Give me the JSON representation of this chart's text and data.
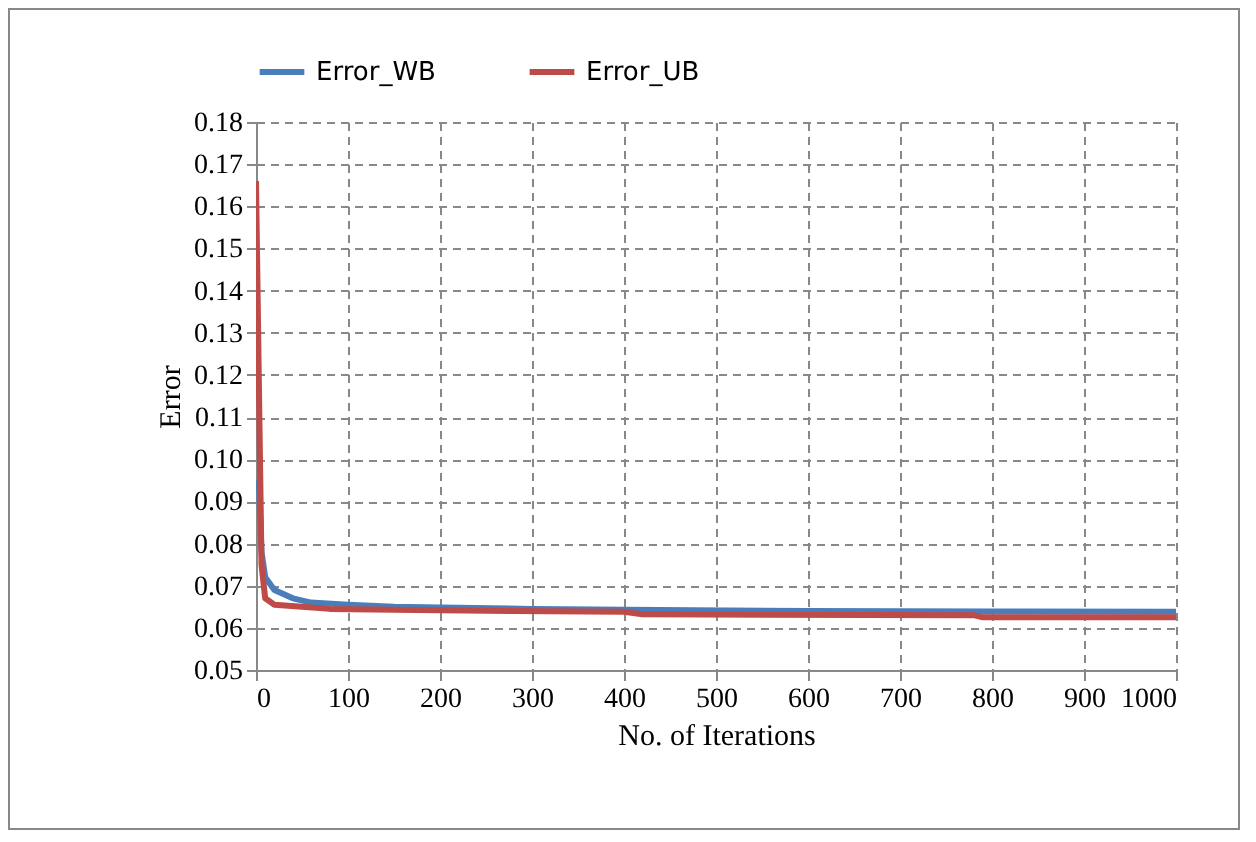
{
  "chart_data": {
    "type": "line",
    "xlabel": "No. of Iterations",
    "ylabel": "Error",
    "xlim": [
      0,
      1000
    ],
    "xticks": [
      0,
      100,
      200,
      300,
      400,
      500,
      600,
      700,
      800,
      900,
      1000
    ],
    "ylim": [
      0.05,
      0.18
    ],
    "yticks": [
      {
        "value": 0.05,
        "label": "0.05"
      },
      {
        "value": 0.06,
        "label": "0.06"
      },
      {
        "value": 0.07,
        "label": "0.07"
      },
      {
        "value": 0.08,
        "label": "0.08"
      },
      {
        "value": 0.09,
        "label": "0.09"
      },
      {
        "value": 0.1,
        "label": "0.10"
      },
      {
        "value": 0.11,
        "label": "0.11"
      },
      {
        "value": 0.12,
        "label": "0.12"
      },
      {
        "value": 0.13,
        "label": "0.13"
      },
      {
        "value": 0.14,
        "label": "0.14"
      },
      {
        "value": 0.15,
        "label": "0.15"
      },
      {
        "value": 0.16,
        "label": "0.16"
      },
      {
        "value": 0.17,
        "label": "0.17"
      },
      {
        "value": 0.18,
        "label": "0.18"
      }
    ],
    "grid": true,
    "legend": "top",
    "marker": "none",
    "line_style": "solid",
    "series": [
      {
        "name": "Error_WB",
        "color": "#4a7ebb",
        "x": [
          3,
          6,
          10,
          20,
          40,
          60,
          100,
          150,
          200,
          300,
          400,
          600,
          800,
          1000
        ],
        "values": [
          0.095,
          0.078,
          0.072,
          0.069,
          0.067,
          0.066,
          0.0655,
          0.065,
          0.0648,
          0.0645,
          0.0643,
          0.064,
          0.0639,
          0.0638
        ]
      },
      {
        "name": "Error_UB",
        "color": "#be4b48",
        "x": [
          0,
          3,
          6,
          10,
          20,
          50,
          80,
          150,
          280,
          400,
          420,
          780,
          790,
          1000
        ],
        "values": [
          0.166,
          0.12,
          0.075,
          0.067,
          0.0655,
          0.065,
          0.0645,
          0.0643,
          0.064,
          0.0638,
          0.0632,
          0.063,
          0.0625,
          0.0625
        ]
      }
    ]
  }
}
